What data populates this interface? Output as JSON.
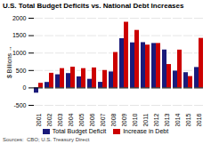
{
  "chart_data": {
    "type": "bar",
    "title": "U.S. Total Budget Deficits vs. National Debt Increases",
    "ylabel": "$ Billions",
    "source": "Sources:  CBO; U.S. Treasury Direct",
    "categories": [
      "2001",
      "2002",
      "2003",
      "2004",
      "2005",
      "2006",
      "2007",
      "2008",
      "2009",
      "2010",
      "2011",
      "2012",
      "2013",
      "2014",
      "2015",
      "2016"
    ],
    "series": [
      {
        "name": "Total Budget Deficit",
        "color": "#1a1a7a",
        "values": [
          -150,
          158,
          378,
          413,
          318,
          248,
          161,
          459,
          1413,
          1294,
          1300,
          1276,
          1089,
          483,
          438,
          587
        ]
      },
      {
        "name": "Increase in Debt",
        "color": "#cc0000",
        "values": [
          133,
          421,
          555,
          596,
          554,
          574,
          501,
          1017,
          1885,
          1651,
          1229,
          1276,
          672,
          1086,
          327,
          1422
        ]
      }
    ],
    "ylim": [
      -500,
      2000
    ],
    "yticks": [
      -500,
      0,
      500,
      1000,
      1500,
      2000
    ],
    "grid": true,
    "legend": "bottom"
  }
}
